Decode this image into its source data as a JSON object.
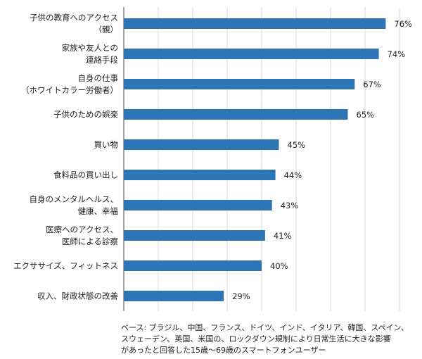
{
  "chart_data": {
    "type": "bar",
    "orientation": "horizontal",
    "categories": [
      "子供の教育へのアクセス\n（親）",
      "家族や友人との\n連絡手段",
      "自身の仕事\n（ホワイトカラー労働者）",
      "子供のための娯楽",
      "買い物",
      "食料品の買い出し",
      "自身のメンタルヘルス、\n健康、幸福",
      "医療へのアクセス、\n医師による診察",
      "エクササイズ、フィットネス",
      "収入、財政状態の改善"
    ],
    "values": [
      76,
      74,
      67,
      65,
      45,
      44,
      43,
      41,
      40,
      29
    ],
    "value_labels": [
      "76%",
      "74%",
      "67%",
      "65%",
      "45%",
      "44%",
      "43%",
      "41%",
      "40%",
      "29%"
    ],
    "color": "#2e75b6",
    "xlim": [
      0,
      80
    ],
    "xticks": [
      10,
      20,
      30,
      40,
      50,
      60,
      70,
      80
    ],
    "grid": true,
    "note": "ベース: ブラジル、中国、フランス、ドイツ、インド、イタリア、韓国、スペイン、\nスウェーデン、英国、米国の、ロックダウン規制により日常生活に大きな影響\nがあったと回答した15歳〜69歳のスマートフォンユーザー"
  }
}
